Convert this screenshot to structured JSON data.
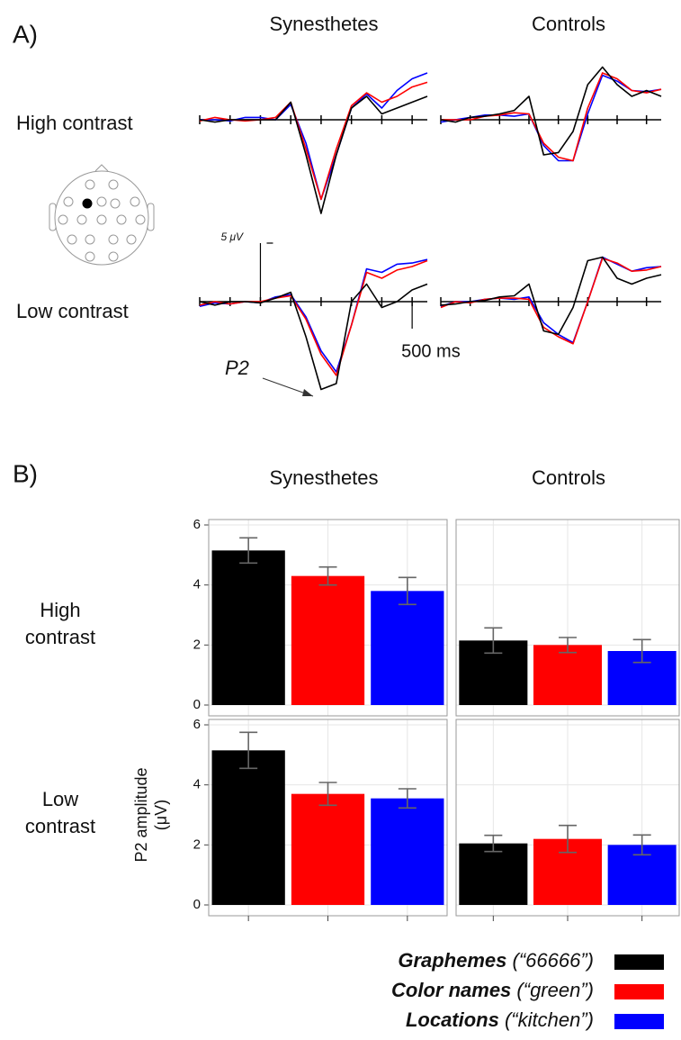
{
  "figure": {
    "panel_a": "A)",
    "panel_b": "B)",
    "columns_a": [
      "Synesthetes",
      "Controls"
    ],
    "rows_a": [
      "High contrast",
      "Low contrast"
    ],
    "columns_b": [
      "Synesthetes",
      "Controls"
    ],
    "rows_b": [
      "High contrast",
      "Low contrast"
    ],
    "y_label": "P2 amplitude (μV)",
    "annotation": "P2"
  },
  "chart_data": [
    {
      "type": "line",
      "x": [
        -200,
        -150,
        -100,
        -50,
        0,
        50,
        100,
        150,
        200,
        250,
        300,
        350,
        400,
        450,
        500,
        550
      ],
      "xlim": [
        -200,
        550
      ],
      "xticks": [
        -200,
        -100,
        0,
        100,
        200,
        300,
        400,
        500
      ],
      "ylim": [
        -5,
        9
      ],
      "y_inverted": true,
      "series": [
        {
          "name": "Graphemes",
          "color": "#000000",
          "values": [
            0,
            0.2,
            0,
            0,
            0,
            0,
            -1.5,
            3,
            8,
            3,
            -1,
            -2,
            -0.5,
            -1,
            -1.5,
            -2
          ]
        },
        {
          "name": "Color names",
          "color": "#ff0000",
          "values": [
            0.1,
            -0.2,
            0,
            0.1,
            0,
            -0.2,
            -1.5,
            2.5,
            6.8,
            2.5,
            -1.2,
            -2.3,
            -1.5,
            -2,
            -2.8,
            -3.2
          ]
        },
        {
          "name": "Locations",
          "color": "#0000ff",
          "values": [
            0,
            0,
            0.1,
            -0.2,
            -0.2,
            0,
            -1.3,
            2,
            6.8,
            3,
            -1,
            -2.2,
            -1,
            -2.5,
            -3.5,
            -4
          ]
        }
      ]
    },
    {
      "type": "line",
      "x": [
        -200,
        -150,
        -100,
        -50,
        0,
        50,
        100,
        150,
        200,
        250,
        300,
        350,
        400,
        450,
        500,
        550
      ],
      "xlim": [
        -200,
        550
      ],
      "xticks": [
        -200,
        -100,
        0,
        100,
        200,
        300,
        400,
        500
      ],
      "ylim": [
        -5,
        9
      ],
      "y_inverted": true,
      "series": [
        {
          "name": "Graphemes",
          "color": "#000000",
          "values": [
            0,
            0.2,
            -0.2,
            -0.3,
            -0.5,
            -0.8,
            -2,
            3,
            2.8,
            1,
            -3,
            -4.5,
            -3,
            -2,
            -2.5,
            -2
          ]
        },
        {
          "name": "Color names",
          "color": "#ff0000",
          "values": [
            0,
            0,
            0,
            -0.3,
            -0.4,
            -0.6,
            -0.5,
            2,
            3.2,
            3.5,
            -1,
            -4,
            -3.5,
            -2.5,
            -2.3,
            -2.6
          ]
        },
        {
          "name": "Locations",
          "color": "#0000ff",
          "values": [
            0.2,
            0,
            -0.2,
            -0.4,
            -0.4,
            -0.3,
            -0.5,
            2.2,
            3.5,
            3.5,
            -0.5,
            -3.8,
            -3.3,
            -2.5,
            -2.4,
            -2.6
          ]
        }
      ]
    },
    {
      "type": "line",
      "x": [
        -200,
        -150,
        -100,
        -50,
        0,
        50,
        100,
        150,
        200,
        250,
        300,
        350,
        400,
        450,
        500,
        550
      ],
      "xlim": [
        -200,
        550
      ],
      "xticks": [
        -200,
        -100,
        0,
        100,
        200,
        300,
        400,
        500
      ],
      "ylim": [
        -5,
        9
      ],
      "y_inverted": true,
      "scale_bar": {
        "y": 5,
        "y_label": "5 μV",
        "x": 500,
        "x_label": "500 ms"
      },
      "series": [
        {
          "name": "Graphemes",
          "color": "#000000",
          "values": [
            0,
            0.3,
            0,
            0,
            0.1,
            -0.3,
            -0.8,
            3,
            7.5,
            7,
            0,
            -1.5,
            0.5,
            0,
            -1,
            -1.5
          ]
        },
        {
          "name": "Color names",
          "color": "#ff0000",
          "values": [
            0.3,
            0,
            0.2,
            0,
            0,
            -0.3,
            -0.5,
            1.5,
            4.5,
            6.3,
            2,
            -2.5,
            -2,
            -2.7,
            -3,
            -3.5
          ]
        },
        {
          "name": "Locations",
          "color": "#0000ff",
          "values": [
            0.4,
            0.1,
            0.2,
            0,
            0.1,
            -0.4,
            -0.6,
            1.3,
            4.2,
            6,
            2,
            -2.8,
            -2.5,
            -3.2,
            -3.3,
            -3.6
          ]
        }
      ]
    },
    {
      "type": "line",
      "x": [
        -200,
        -150,
        -100,
        -50,
        0,
        50,
        100,
        150,
        200,
        250,
        300,
        350,
        400,
        450,
        500,
        550
      ],
      "xlim": [
        -200,
        550
      ],
      "xticks": [
        -200,
        -100,
        0,
        100,
        200,
        300,
        400,
        500
      ],
      "ylim": [
        -5,
        9
      ],
      "y_inverted": true,
      "series": [
        {
          "name": "Graphemes",
          "color": "#000000",
          "values": [
            0.3,
            0.2,
            0,
            -0.1,
            -0.4,
            -0.5,
            -1.5,
            2.5,
            2.8,
            0.5,
            -3.5,
            -3.8,
            -2,
            -1.5,
            -2,
            -2.3
          ]
        },
        {
          "name": "Color names",
          "color": "#ff0000",
          "values": [
            0.5,
            0,
            0.1,
            -0.2,
            -0.3,
            -0.3,
            -0.2,
            2.2,
            3,
            3.6,
            0,
            -3.7,
            -3.3,
            -2.6,
            -2.7,
            -3
          ]
        },
        {
          "name": "Locations",
          "color": "#0000ff",
          "values": [
            0.4,
            0,
            0,
            -0.2,
            -0.3,
            -0.2,
            -0.4,
            1.8,
            2.8,
            3.5,
            0,
            -3.8,
            -3.2,
            -2.6,
            -2.9,
            -3
          ]
        }
      ]
    },
    {
      "type": "bar",
      "ylim": [
        0,
        6
      ],
      "yticks": [
        0,
        2,
        4,
        6
      ],
      "grid": true,
      "series": [
        {
          "name": "Graphemes",
          "example": "(“66666”)",
          "color": "#000000",
          "values": [
            5.15
          ],
          "errors": [
            0.42
          ]
        },
        {
          "name": "Color names",
          "example": "(“green”)",
          "color": "#ff0000",
          "values": [
            4.3
          ],
          "errors": [
            0.3
          ]
        },
        {
          "name": "Locations",
          "example": "(“kitchen”)",
          "color": "#0000ff",
          "values": [
            3.8
          ],
          "errors": [
            0.45
          ]
        }
      ]
    },
    {
      "type": "bar",
      "ylim": [
        0,
        6
      ],
      "yticks": [
        0,
        2,
        4,
        6
      ],
      "grid": true,
      "series": [
        {
          "name": "Graphemes",
          "color": "#000000",
          "values": [
            2.15
          ],
          "errors": [
            0.42
          ]
        },
        {
          "name": "Color names",
          "color": "#ff0000",
          "values": [
            2.0
          ],
          "errors": [
            0.25
          ]
        },
        {
          "name": "Locations",
          "color": "#0000ff",
          "values": [
            1.8
          ],
          "errors": [
            0.38
          ]
        }
      ]
    },
    {
      "type": "bar",
      "ylim": [
        0,
        6
      ],
      "yticks": [
        0,
        2,
        4,
        6
      ],
      "grid": true,
      "series": [
        {
          "name": "Graphemes",
          "color": "#000000",
          "values": [
            5.15
          ],
          "errors": [
            0.6
          ]
        },
        {
          "name": "Color names",
          "color": "#ff0000",
          "values": [
            3.7
          ],
          "errors": [
            0.38
          ]
        },
        {
          "name": "Locations",
          "color": "#0000ff",
          "values": [
            3.55
          ],
          "errors": [
            0.32
          ]
        }
      ]
    },
    {
      "type": "bar",
      "ylim": [
        0,
        6
      ],
      "yticks": [
        0,
        2,
        4,
        6
      ],
      "grid": true,
      "series": [
        {
          "name": "Graphemes",
          "color": "#000000",
          "values": [
            2.05
          ],
          "errors": [
            0.27
          ]
        },
        {
          "name": "Color names",
          "color": "#ff0000",
          "values": [
            2.2
          ],
          "errors": [
            0.45
          ]
        },
        {
          "name": "Locations",
          "color": "#0000ff",
          "values": [
            2.0
          ],
          "errors": [
            0.33
          ]
        }
      ]
    }
  ]
}
